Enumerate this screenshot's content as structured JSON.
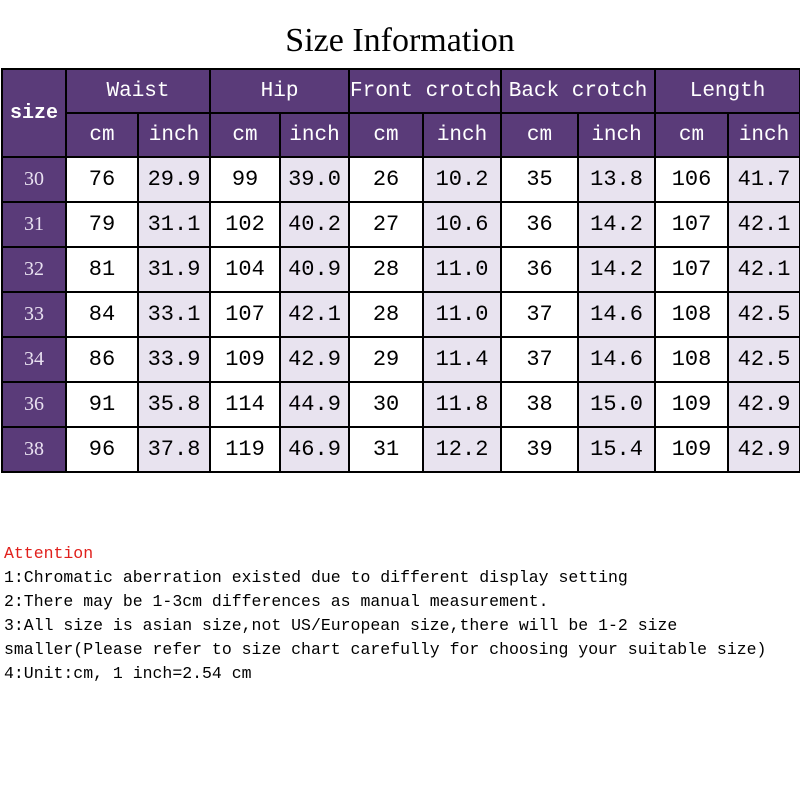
{
  "title": "Size Information",
  "table": {
    "size_header": "size",
    "groups": [
      "Waist",
      "Hip",
      "Front crotch",
      "Back crotch",
      "Length"
    ],
    "unit_labels": [
      "cm",
      "inch"
    ],
    "rows": [
      {
        "size": "30",
        "values": [
          "76",
          "29.9",
          "99",
          "39.0",
          "26",
          "10.2",
          "35",
          "13.8",
          "106",
          "41.7"
        ]
      },
      {
        "size": "31",
        "values": [
          "79",
          "31.1",
          "102",
          "40.2",
          "27",
          "10.6",
          "36",
          "14.2",
          "107",
          "42.1"
        ]
      },
      {
        "size": "32",
        "values": [
          "81",
          "31.9",
          "104",
          "40.9",
          "28",
          "11.0",
          "36",
          "14.2",
          "107",
          "42.1"
        ]
      },
      {
        "size": "33",
        "values": [
          "84",
          "33.1",
          "107",
          "42.1",
          "28",
          "11.0",
          "37",
          "14.6",
          "108",
          "42.5"
        ]
      },
      {
        "size": "34",
        "values": [
          "86",
          "33.9",
          "109",
          "42.9",
          "29",
          "11.4",
          "37",
          "14.6",
          "108",
          "42.5"
        ]
      },
      {
        "size": "36",
        "values": [
          "91",
          "35.8",
          "114",
          "44.9",
          "30",
          "11.8",
          "38",
          "15.0",
          "109",
          "42.9"
        ]
      },
      {
        "size": "38",
        "values": [
          "96",
          "37.8",
          "119",
          "46.9",
          "31",
          "12.2",
          "39",
          "15.4",
          "109",
          "42.9"
        ]
      }
    ]
  },
  "notes": {
    "heading": "Attention",
    "lines": [
      "1:Chromatic aberration existed due to different display setting",
      "2:There may be 1-3cm differences as manual measurement.",
      "3:All size is asian size,not US/European size,there will be 1-2 size smaller(Please refer to size chart carefully for choosing your suitable size)",
      "4:Unit:cm, 1 inch=2.54 cm"
    ]
  },
  "colors": {
    "header_bg": "#5a3b79",
    "inch_bg": "#e8e3ef",
    "attention": "#e0201c"
  }
}
